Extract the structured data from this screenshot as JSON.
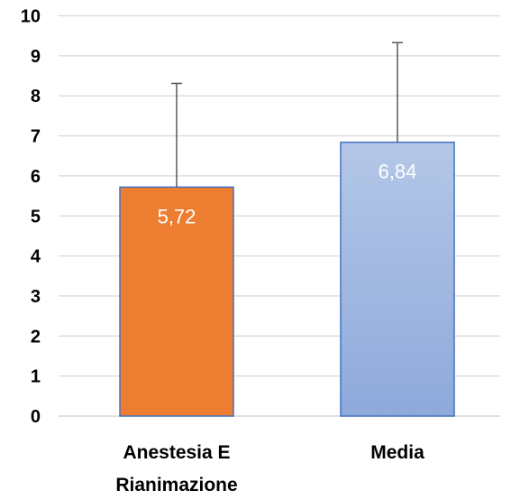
{
  "chart_data": {
    "type": "bar",
    "title": "",
    "xlabel": "",
    "ylabel": "",
    "ylim": [
      0,
      10
    ],
    "yticks": [
      "0",
      "1",
      "2",
      "3",
      "4",
      "5",
      "6",
      "7",
      "8",
      "9",
      "10"
    ],
    "grid": true,
    "legend": "none",
    "categories": [
      {
        "lines": [
          "Anestesia E",
          "Rianimazione"
        ]
      },
      {
        "lines": [
          "Media"
        ]
      }
    ],
    "values": [
      5.72,
      6.84
    ],
    "data_labels": [
      "5,72",
      "6,84"
    ],
    "error_upper": [
      8.31,
      9.33
    ],
    "bar_colors": [
      "#ED7D31",
      "#8FA6D9"
    ],
    "gradient": [
      null,
      [
        "#B4C7E7",
        "#8EA9DB"
      ]
    ],
    "bar_border": "#4472C4",
    "error_color": "#595959",
    "grid_color": "#D9D9D9"
  }
}
